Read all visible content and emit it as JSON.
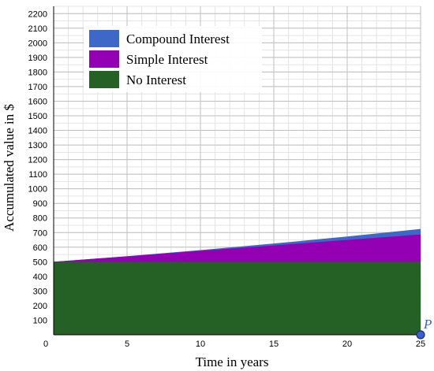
{
  "chart_data": {
    "type": "area",
    "xlabel": "Time in years",
    "ylabel": "Accumulated value in $",
    "xlim": [
      0,
      25
    ],
    "ylim": [
      0,
      2250
    ],
    "x_ticks": [
      0,
      5,
      10,
      15,
      20,
      25
    ],
    "y_ticks": [
      100,
      200,
      300,
      400,
      500,
      600,
      700,
      800,
      900,
      1000,
      1100,
      1200,
      1300,
      1400,
      1500,
      1600,
      1700,
      1800,
      1900,
      2000,
      2100,
      2200
    ],
    "x_minor_step": 1,
    "y_minor_step": 50,
    "grid": true,
    "legend_placement": "top-left",
    "x": [
      0,
      5,
      10,
      15,
      20,
      25
    ],
    "series": [
      {
        "name": "Compound Interest",
        "color": "#3d68c8",
        "values": [
          500,
          538,
          580,
          625,
          673,
          725
        ]
      },
      {
        "name": "Simple Interest",
        "color": "#9400b4",
        "values": [
          500,
          537,
          575,
          612,
          650,
          687
        ]
      },
      {
        "name": "No Interest",
        "color": "#256125",
        "values": [
          500,
          500,
          500,
          500,
          500,
          500
        ]
      }
    ],
    "point": {
      "label": "P",
      "x": 25,
      "y": 0,
      "color": "#3a5fc8"
    }
  }
}
